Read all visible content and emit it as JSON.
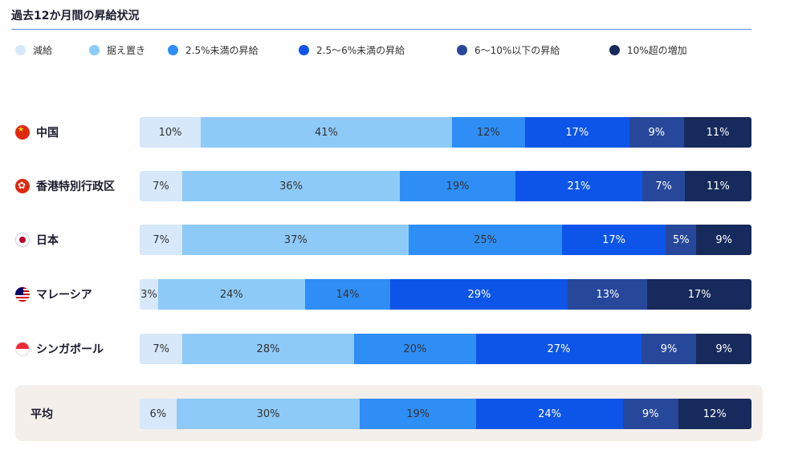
{
  "title": "過去12か月間の昇給状況",
  "legend": [
    {
      "label": "減給",
      "color": "#d6e8fa"
    },
    {
      "label": "据え置き",
      "color": "#8ecaf8"
    },
    {
      "label": "2.5%未満の昇給",
      "color": "#2f8ef5"
    },
    {
      "label": "2.5〜6%未満の昇給",
      "color": "#0d55e8"
    },
    {
      "label": "6〜10%以下の昇給",
      "color": "#27489a"
    },
    {
      "label": "10%超の増加",
      "color": "#172a5c"
    }
  ],
  "rows": [
    {
      "label": "中国",
      "flag": "china-flag-icon"
    },
    {
      "label": "香港特別行政区",
      "flag": "hong-kong-flag-icon"
    },
    {
      "label": "日本",
      "flag": "japan-flag-icon"
    },
    {
      "label": "マレーシア",
      "flag": "malaysia-flag-icon"
    },
    {
      "label": "シンガポール",
      "flag": "singapore-flag-icon"
    },
    {
      "label": "平均",
      "flag": ""
    }
  ],
  "chart_data": {
    "type": "bar",
    "orientation": "horizontal",
    "stacked": true,
    "normalized": "100%",
    "title": "過去12か月間の昇給状況",
    "categories": [
      "中国",
      "香港特別行政区",
      "日本",
      "マレーシア",
      "シンガポール",
      "平均"
    ],
    "series": [
      {
        "name": "減給",
        "values": [
          10,
          7,
          7,
          3,
          7,
          6
        ],
        "labels": [
          "10%",
          "7%",
          "7%",
          "3%",
          "7%",
          "6%"
        ]
      },
      {
        "name": "据え置き",
        "values": [
          41,
          36,
          37,
          24,
          28,
          30
        ],
        "labels": [
          "41%",
          "36%",
          "37%",
          "24%",
          "28%",
          "30%"
        ]
      },
      {
        "name": "2.5%未満の昇給",
        "values": [
          12,
          19,
          25,
          14,
          20,
          19
        ],
        "labels": [
          "12%",
          "19%",
          "25%",
          "14%",
          "20%",
          "19%"
        ]
      },
      {
        "name": "2.5〜6%未満の昇給",
        "values": [
          17,
          21,
          17,
          29,
          27,
          24
        ],
        "labels": [
          "17%",
          "21%",
          "17%",
          "29%",
          "27%",
          "24%"
        ]
      },
      {
        "name": "6〜10%以下の昇給",
        "values": [
          9,
          7,
          5,
          13,
          9,
          9
        ],
        "labels": [
          "9%",
          "7%",
          "5%",
          "13%",
          "9%",
          "9%"
        ]
      },
      {
        "name": "10%超の増加",
        "values": [
          11,
          11,
          9,
          17,
          9,
          12
        ],
        "labels": [
          "11%",
          "11%",
          "9%",
          "17%",
          "9%",
          "12%"
        ]
      }
    ],
    "legend_position": "top",
    "grid": false
  }
}
